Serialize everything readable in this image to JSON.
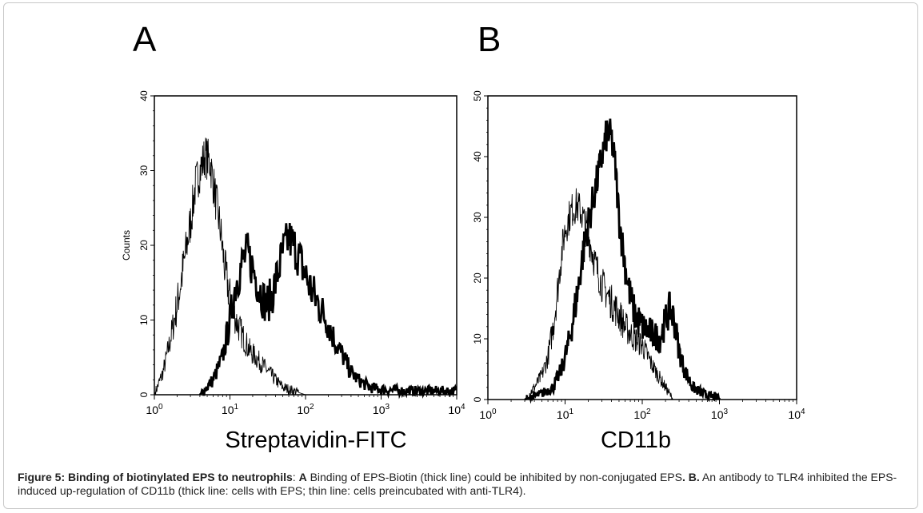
{
  "chart_data": [
    {
      "type": "histogram",
      "panel": "A",
      "xlabel": "Streptavidin-FITC",
      "ylabel": "Counts",
      "xscale": "log",
      "xlim": [
        1,
        10000
      ],
      "ylim": [
        0,
        40
      ],
      "x_ticks": [
        "10^0",
        "10^1",
        "10^2",
        "10^3",
        "10^4"
      ],
      "y_ticks": [
        "0",
        "10",
        "20",
        "30",
        "40"
      ],
      "series": [
        {
          "style": "thin",
          "points": [
            [
              1,
              0
            ],
            [
              1.3,
              3
            ],
            [
              1.6,
              7
            ],
            [
              2,
              12
            ],
            [
              2.5,
              18
            ],
            [
              3,
              23
            ],
            [
              3.5,
              28
            ],
            [
              4,
              30
            ],
            [
              4.7,
              32
            ],
            [
              5.5,
              31
            ],
            [
              6.3,
              27
            ],
            [
              7.5,
              22
            ],
            [
              8.5,
              17
            ],
            [
              10,
              13
            ],
            [
              12,
              10
            ],
            [
              14.5,
              8
            ],
            [
              18,
              6
            ],
            [
              22,
              5
            ],
            [
              27,
              4
            ],
            [
              33,
              3
            ],
            [
              40,
              2
            ],
            [
              50,
              1
            ],
            [
              70,
              0.5
            ],
            [
              100,
              0
            ]
          ]
        },
        {
          "style": "thick",
          "points": [
            [
              4,
              0
            ],
            [
              6,
              2
            ],
            [
              8,
              5
            ],
            [
              10,
              10
            ],
            [
              12,
              15
            ],
            [
              15,
              18
            ],
            [
              17,
              19
            ],
            [
              20,
              17
            ],
            [
              25,
              14
            ],
            [
              30,
              12
            ],
            [
              35,
              13
            ],
            [
              40,
              15
            ],
            [
              50,
              19
            ],
            [
              60,
              21
            ],
            [
              70,
              20
            ],
            [
              85,
              18
            ],
            [
              100,
              16
            ],
            [
              120,
              14
            ],
            [
              150,
              12
            ],
            [
              190,
              10
            ],
            [
              250,
              7
            ],
            [
              320,
              5
            ],
            [
              400,
              3
            ],
            [
              500,
              2
            ],
            [
              700,
              1
            ],
            [
              1000,
              0.7
            ],
            [
              2000,
              0.5
            ],
            [
              4000,
              0.5
            ],
            [
              10000,
              0.5
            ]
          ]
        }
      ]
    },
    {
      "type": "histogram",
      "panel": "B",
      "xlabel": "CD11b",
      "ylabel": "",
      "xscale": "log",
      "xlim": [
        1,
        10000
      ],
      "ylim": [
        0,
        50
      ],
      "x_ticks": [
        "10^0",
        "10^1",
        "10^2",
        "10^3",
        "10^4"
      ],
      "y_ticks": [
        "0",
        "10",
        "20",
        "30",
        "40",
        "50"
      ],
      "series": [
        {
          "style": "thin",
          "points": [
            [
              3,
              0
            ],
            [
              4,
              2
            ],
            [
              5,
              4
            ],
            [
              6,
              7
            ],
            [
              7,
              12
            ],
            [
              8,
              18
            ],
            [
              9,
              24
            ],
            [
              10,
              28
            ],
            [
              12,
              31
            ],
            [
              14,
              32
            ],
            [
              16,
              31
            ],
            [
              18,
              29
            ],
            [
              20,
              27
            ],
            [
              25,
              22
            ],
            [
              30,
              19
            ],
            [
              40,
              16
            ],
            [
              50,
              14
            ],
            [
              60,
              12
            ],
            [
              80,
              10
            ],
            [
              100,
              9
            ],
            [
              130,
              6
            ],
            [
              160,
              4
            ],
            [
              200,
              2
            ],
            [
              250,
              0
            ]
          ]
        },
        {
          "style": "thick",
          "points": [
            [
              3,
              0
            ],
            [
              5,
              1
            ],
            [
              7,
              2
            ],
            [
              9,
              5
            ],
            [
              11,
              9
            ],
            [
              13,
              14
            ],
            [
              15,
              19
            ],
            [
              17,
              24
            ],
            [
              20,
              29
            ],
            [
              25,
              35
            ],
            [
              30,
              40
            ],
            [
              35,
              44
            ],
            [
              40,
              43
            ],
            [
              45,
              38
            ],
            [
              50,
              30
            ],
            [
              60,
              22
            ],
            [
              70,
              17
            ],
            [
              80,
              14
            ],
            [
              100,
              12
            ],
            [
              130,
              11
            ],
            [
              170,
              10
            ],
            [
              200,
              13
            ],
            [
              230,
              15
            ],
            [
              260,
              13
            ],
            [
              300,
              8
            ],
            [
              350,
              5
            ],
            [
              450,
              2
            ],
            [
              600,
              1
            ],
            [
              800,
              0.5
            ],
            [
              1000,
              0.3
            ]
          ]
        }
      ]
    }
  ],
  "labels": {
    "panel_a": "A",
    "panel_b": "B"
  },
  "caption": {
    "fig_title": "Figure 5: Binding of biotinylated EPS to neutrophils",
    "sep1": ": ",
    "a_label": "A",
    "a_text": " Binding of EPS-Biotin (thick line) could be inhibited by non-conjugated EPS",
    "dot1": ". ",
    "b_label": "B.",
    "b_text": " An antibody to TLR4 inhibited the EPS-induced up-regulation of CD11b (thick line: cells with EPS; thin line: cells preincubated with anti-TLR4)."
  }
}
